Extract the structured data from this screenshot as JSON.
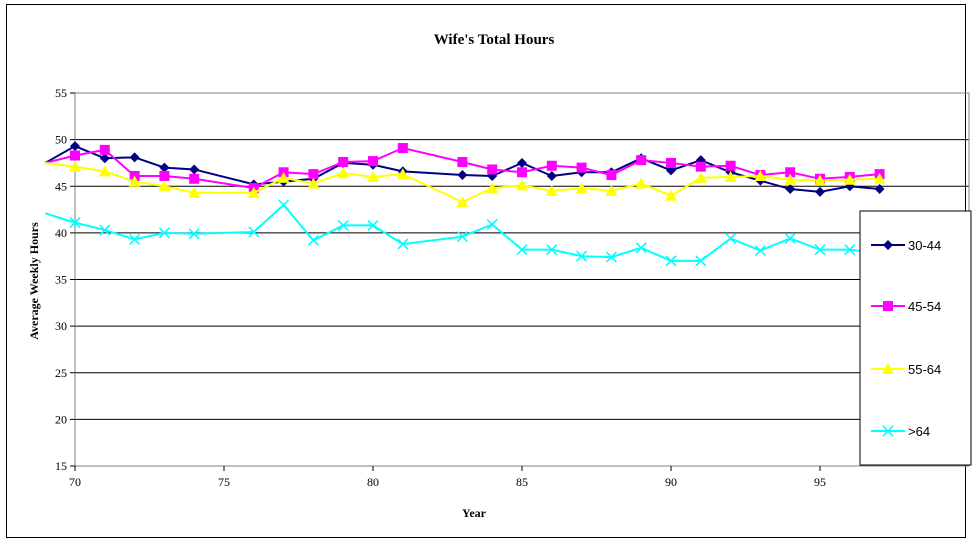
{
  "chart_data": {
    "type": "line",
    "title": "Wife's Total Hours",
    "xlabel": "Year",
    "ylabel": "Average Weekly Hours",
    "xlim": [
      70,
      100
    ],
    "ylim": [
      15,
      55
    ],
    "x_ticks": [
      70,
      75,
      80,
      85,
      90,
      95
    ],
    "y_ticks": [
      15,
      20,
      25,
      30,
      35,
      40,
      45,
      50,
      55
    ],
    "grid": "horizontal",
    "legend_position": "right",
    "series": [
      {
        "name": "30-44",
        "color": "#000080",
        "marker": "diamond",
        "x": [
          69,
          70,
          71,
          72,
          73,
          74,
          76,
          77,
          78,
          79,
          80,
          81,
          83,
          84,
          85,
          86,
          87,
          88,
          89,
          90,
          91,
          92,
          93,
          94,
          95,
          96,
          97
        ],
        "y": [
          47.5,
          49.3,
          48.0,
          48.1,
          47.0,
          46.8,
          45.2,
          45.5,
          45.8,
          47.5,
          47.3,
          46.6,
          46.2,
          46.1,
          47.5,
          46.1,
          46.5,
          46.5,
          48.0,
          46.7,
          47.8,
          46.5,
          45.6,
          44.7,
          44.4,
          45.0,
          44.7
        ]
      },
      {
        "name": "45-54",
        "color": "#ff00ff",
        "marker": "square",
        "x": [
          69,
          70,
          71,
          72,
          73,
          74,
          76,
          77,
          78,
          79,
          80,
          81,
          83,
          84,
          85,
          86,
          87,
          88,
          89,
          90,
          91,
          92,
          93,
          94,
          95,
          96,
          97
        ],
        "y": [
          47.5,
          48.3,
          48.9,
          46.1,
          46.1,
          45.8,
          44.8,
          46.5,
          46.3,
          47.6,
          47.7,
          49.1,
          47.6,
          46.8,
          46.5,
          47.2,
          47.0,
          46.2,
          47.8,
          47.5,
          47.1,
          47.2,
          46.2,
          46.5,
          45.8,
          46.0,
          46.3
        ]
      },
      {
        "name": "55-64",
        "color": "#ffff00",
        "marker": "triangle",
        "x": [
          69,
          70,
          71,
          72,
          73,
          74,
          76,
          77,
          78,
          79,
          80,
          81,
          83,
          84,
          85,
          86,
          87,
          88,
          89,
          90,
          91,
          92,
          93,
          94,
          95,
          96,
          97
        ],
        "y": [
          47.5,
          47.1,
          46.6,
          45.5,
          45.0,
          44.3,
          44.3,
          45.9,
          45.3,
          46.4,
          46.0,
          46.3,
          43.3,
          44.8,
          45.1,
          44.5,
          44.8,
          44.5,
          45.3,
          44.0,
          45.9,
          46.0,
          46.1,
          45.7,
          45.6,
          45.7,
          45.8
        ]
      },
      {
        "name": ">64",
        "color": "#00ffff",
        "marker": "x",
        "x": [
          69,
          70,
          71,
          72,
          73,
          74,
          76,
          77,
          78,
          79,
          80,
          81,
          83,
          84,
          85,
          86,
          87,
          88,
          89,
          90,
          91,
          92,
          93,
          94,
          95,
          96,
          97
        ],
        "y": [
          42.1,
          41.1,
          40.3,
          39.3,
          40.0,
          39.9,
          40.1,
          43.0,
          39.2,
          40.8,
          40.8,
          38.8,
          39.6,
          40.9,
          38.2,
          38.2,
          37.5,
          37.4,
          38.4,
          37.0,
          37.0,
          39.4,
          38.1,
          39.4,
          38.2,
          38.2,
          37.8
        ]
      }
    ]
  }
}
